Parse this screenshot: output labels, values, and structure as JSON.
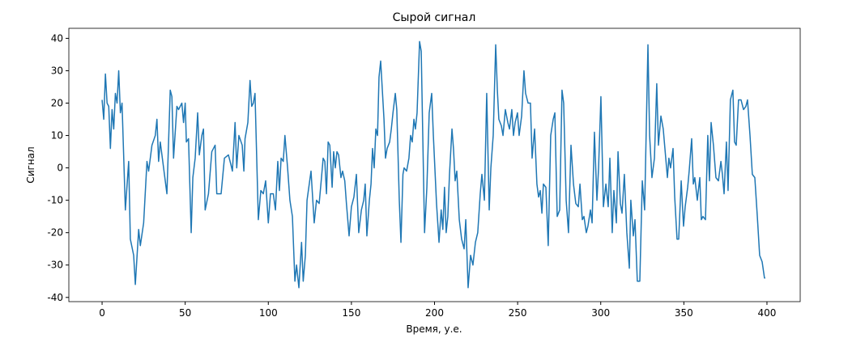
{
  "chart_data": {
    "type": "line",
    "title": "Сырой сигнал",
    "xlabel": "Время, у.е.",
    "ylabel": "Сигнал",
    "color": "#1f77b4",
    "xlim": [
      -20,
      420
    ],
    "ylim": [
      -41.3,
      43.1
    ],
    "xticks": [
      0,
      50,
      100,
      150,
      200,
      250,
      300,
      350,
      400
    ],
    "yticks": [
      -40,
      -30,
      -20,
      -10,
      0,
      10,
      20,
      30,
      40
    ],
    "x": [
      0,
      1,
      2,
      3,
      4,
      5,
      6,
      7,
      8,
      9,
      10,
      11,
      12,
      14,
      16,
      17,
      19,
      20,
      22,
      23,
      25,
      27,
      28,
      30,
      32,
      33,
      34,
      35,
      37.5,
      39,
      41,
      42,
      43,
      45,
      46,
      48,
      49,
      50,
      50.7,
      52,
      53.6,
      54.6,
      56,
      57.5,
      58.5,
      60,
      61,
      62,
      64,
      66,
      68,
      69,
      71.6,
      73.6,
      76,
      77.5,
      78.4,
      80,
      81,
      82.3,
      84.3,
      85.3,
      86,
      87.7,
      89,
      90,
      91,
      92,
      94,
      95.5,
      97,
      98.4,
      100,
      101.3,
      103,
      104.3,
      105.7,
      106.7,
      107.7,
      109,
      110,
      111.6,
      113,
      114.5,
      116,
      117,
      118.4,
      120,
      121,
      122.3,
      123.3,
      125.7,
      127.6,
      129,
      130.6,
      132,
      133,
      134,
      135,
      136,
      137,
      138.4,
      139.3,
      140.3,
      141.3,
      142.3,
      143.7,
      144.7,
      146,
      147,
      148.6,
      150,
      151.5,
      153,
      154.4,
      156,
      157.4,
      158.3,
      159.3,
      160.8,
      161.8,
      162.7,
      163.7,
      164.7,
      165.7,
      166.6,
      167.6,
      168.6,
      169.6,
      170.5,
      171.5,
      173,
      174,
      175,
      176.4,
      177.3,
      178.8,
      179.8,
      181,
      181.7,
      183.2,
      184.6,
      185.6,
      186.6,
      187.6,
      188.5,
      189.5,
      191,
      192,
      193,
      194,
      195.4,
      196.8,
      198.3,
      199.3,
      201.2,
      202.7,
      204,
      205,
      206,
      207,
      208,
      209,
      210.5,
      211.4,
      212.4,
      213.4,
      214.9,
      216.3,
      217.8,
      218.8,
      220.2,
      221.7,
      223.1,
      224.6,
      226,
      227.5,
      228.5,
      230,
      231.4,
      232.9,
      233.9,
      235.3,
      236.8,
      237.8,
      238.7,
      240.2,
      241.2,
      242.6,
      244.1,
      245.1,
      246.5,
      247.5,
      248.5,
      249.9,
      250.9,
      252.4,
      253.8,
      254.8,
      256.3,
      257.7,
      258.7,
      260.2,
      261.6,
      262.6,
      263.6,
      264.6,
      265.5,
      267,
      268.4,
      269.9,
      271.4,
      272.4,
      273.8,
      275.3,
      276.7,
      277.7,
      279.2,
      280.6,
      282.1,
      283.6,
      285,
      286.5,
      287.5,
      288.9,
      289.9,
      291.3,
      292.3,
      293.8,
      294.8,
      296.2,
      297.7,
      298.7,
      300.1,
      301.6,
      303.1,
      304.5,
      305.5,
      306.9,
      307.9,
      309.4,
      310.4,
      311.8,
      312.8,
      314.2,
      315.7,
      317.2,
      318.1,
      319.6,
      320.6,
      322,
      323.5,
      325,
      326.4,
      328.4,
      329.4,
      330.8,
      332.3,
      333.7,
      334.7,
      336.2,
      337.6,
      338.6,
      340.1,
      341,
      342,
      343.5,
      344.5,
      345.9,
      346.9,
      348.4,
      349.8,
      350.8,
      352.3,
      353.2,
      354.7,
      355.7,
      356.6,
      358.1,
      359.6,
      360.5,
      361.5,
      363,
      364.4,
      365.4,
      366.4,
      367.8,
      369.3,
      370.8,
      372.3,
      373.2,
      374.2,
      375.6,
      376.6,
      378,
      379.5,
      380.5,
      381.5,
      382.9,
      384.4,
      385.9,
      387.3,
      388.3,
      389.8,
      391.2,
      392.7,
      394.2,
      395.6,
      397.1,
      398.5,
      399
    ],
    "values": [
      21,
      15,
      29,
      20,
      19,
      6,
      18,
      12,
      23,
      20,
      30,
      17,
      20,
      -13,
      2,
      -22,
      -27,
      -36,
      -19,
      -24,
      -17,
      2,
      -1,
      7,
      10,
      15,
      2,
      8,
      -2,
      -8,
      24,
      22,
      3,
      19,
      18,
      20,
      14,
      20,
      8,
      9,
      -20,
      -3,
      3,
      17,
      4,
      10,
      12,
      -13,
      -8,
      5,
      7,
      -8,
      -8,
      3,
      4,
      1,
      -1,
      14,
      0,
      10,
      7,
      -1,
      9,
      14,
      27,
      19,
      20,
      23,
      -16,
      -7,
      -8,
      -4,
      -17,
      -8,
      -8,
      -13,
      2,
      -7,
      3,
      2,
      10,
      0,
      -10,
      -15,
      -35,
      -30,
      -37,
      -23,
      -35,
      -27,
      -10,
      -1,
      -17,
      -10,
      -11,
      -3,
      3,
      2,
      -8,
      8,
      7,
      -6,
      5,
      0,
      5,
      4,
      -3,
      -1,
      -4,
      -11,
      -21,
      -12,
      -9,
      -2,
      -20,
      -13,
      -10,
      -5,
      -21,
      -10,
      -5,
      6,
      0,
      12,
      10,
      28,
      33,
      24,
      15,
      3,
      6,
      8,
      12,
      17,
      23,
      18,
      -10,
      -23,
      -2,
      0,
      -1,
      3,
      10,
      8,
      15,
      12,
      17,
      39,
      36,
      8,
      -20,
      -6,
      17,
      23,
      10,
      -11,
      -23,
      -13,
      -19,
      -6,
      -20,
      -15,
      -2,
      12,
      6,
      -4,
      -1,
      -16,
      -22,
      -25,
      -16,
      -37,
      -27,
      -30,
      -23,
      -20,
      -8,
      -2,
      -10,
      23,
      -13,
      0,
      10,
      38,
      24,
      15,
      13,
      10,
      18,
      14,
      12,
      18,
      10,
      14,
      17,
      10,
      16,
      30,
      23,
      20,
      20,
      3,
      12,
      -5,
      -9,
      -7,
      -14,
      -5,
      -6,
      -24,
      10,
      15,
      17,
      -15,
      -13,
      24,
      20,
      -10,
      -20,
      7,
      -5,
      -11,
      -12,
      -5,
      -16,
      -15,
      -20,
      -18,
      -13,
      -17,
      11,
      -10,
      0,
      22,
      -12,
      -5,
      -12,
      3,
      -20,
      -7,
      -17,
      5,
      -11,
      -14,
      -2,
      -20,
      -31,
      -10,
      -21,
      -16,
      -35,
      -35,
      -4,
      -13,
      38,
      10,
      -3,
      3,
      26,
      7,
      16,
      12,
      6,
      -3,
      3,
      0,
      6,
      -9,
      -22,
      -22,
      -4,
      -18,
      -12,
      -6,
      -1,
      9,
      -5,
      -3,
      -10,
      -3,
      -16,
      -15,
      -16,
      10,
      -4,
      14,
      7,
      -3,
      -4,
      2,
      -2,
      -8,
      8,
      -7,
      21,
      24,
      8,
      7,
      21,
      21,
      18,
      19,
      21,
      10,
      -2,
      -3,
      -15,
      -27,
      -29,
      -34,
      -34
    ]
  }
}
